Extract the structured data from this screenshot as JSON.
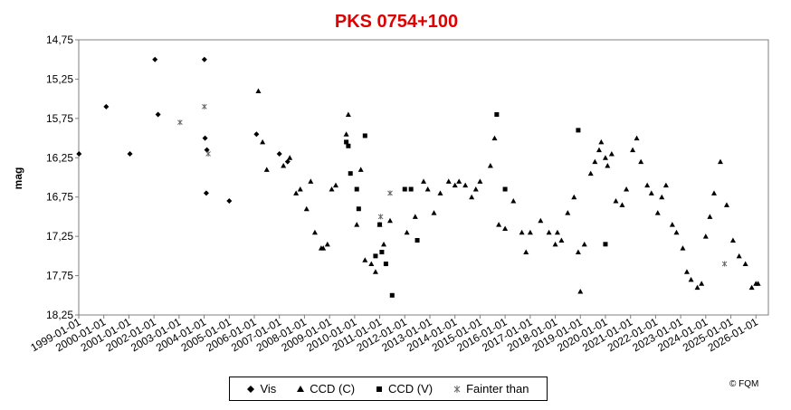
{
  "chart_data": {
    "type": "scatter",
    "title": "PKS 0754+100",
    "title_color": "#e00000",
    "xlabel": "",
    "ylabel": "mag",
    "ylim": [
      14.75,
      18.25
    ],
    "y_inverted": true,
    "yticks": [
      "14,75",
      "15,25",
      "15,75",
      "16,25",
      "16,75",
      "17,25",
      "17,75",
      "18,25"
    ],
    "xlim": [
      "1999-01-01",
      "2026-07-01"
    ],
    "xticks": [
      "1999-01-01",
      "2000-01-01",
      "2001-01-01",
      "2002-01-01",
      "2003-01-01",
      "2004-01-01",
      "2005-01-01",
      "2006-01-01",
      "2007-01-01",
      "2008-01-01",
      "2009-01-01",
      "2010-01-01",
      "2011-01-01",
      "2012-01-01",
      "2013-01-01",
      "2014-01-01",
      "2015-01-01",
      "2016-01-01",
      "2017-01-01",
      "2018-01-01",
      "2019-01-01",
      "2020-01-01",
      "2021-01-01",
      "2022-01-01",
      "2023-01-01",
      "2024-01-01",
      "2025-01-01",
      "2026-01-01"
    ],
    "grid": false,
    "legend_position": "bottom",
    "series": [
      {
        "name": "Vis",
        "marker": "diamond",
        "color": "#000000",
        "points": [
          [
            "1999-01-05",
            16.2
          ],
          [
            "2000-02-05",
            15.6
          ],
          [
            "2001-01-15",
            16.2
          ],
          [
            "2002-01-15",
            15.0
          ],
          [
            "2002-03-01",
            15.7
          ],
          [
            "2004-01-05",
            15.0
          ],
          [
            "2004-01-15",
            16.0
          ],
          [
            "2004-02-10",
            16.15
          ],
          [
            "2004-02-01",
            16.7
          ],
          [
            "2005-01-01",
            16.8
          ],
          [
            "2006-02-01",
            15.95
          ],
          [
            "2007-01-01",
            16.2
          ],
          [
            "2007-05-01",
            16.3
          ]
        ]
      },
      {
        "name": "CCD (C)",
        "marker": "triangle",
        "color": "#000000",
        "points": [
          [
            "2006-03-01",
            15.4
          ],
          [
            "2006-05-01",
            16.05
          ],
          [
            "2006-07-01",
            16.4
          ],
          [
            "2007-03-01",
            16.35
          ],
          [
            "2007-06-01",
            16.25
          ],
          [
            "2007-09-01",
            16.7
          ],
          [
            "2007-11-01",
            16.65
          ],
          [
            "2008-02-01",
            16.9
          ],
          [
            "2008-04-01",
            16.55
          ],
          [
            "2008-06-01",
            17.2
          ],
          [
            "2008-09-01",
            17.4
          ],
          [
            "2008-12-01",
            17.35
          ],
          [
            "2008-10-01",
            17.4
          ],
          [
            "2009-02-01",
            16.65
          ],
          [
            "2009-04-01",
            16.6
          ],
          [
            "2009-09-01",
            15.95
          ],
          [
            "2009-10-01",
            15.7
          ],
          [
            "2010-02-01",
            17.1
          ],
          [
            "2010-04-01",
            16.4
          ],
          [
            "2010-06-01",
            17.55
          ],
          [
            "2010-09-01",
            17.6
          ],
          [
            "2010-11-01",
            17.7
          ],
          [
            "2011-01-01",
            17.1
          ],
          [
            "2011-03-01",
            17.35
          ],
          [
            "2011-06-01",
            17.05
          ],
          [
            "2012-02-01",
            17.2
          ],
          [
            "2012-06-01",
            17.0
          ],
          [
            "2012-10-01",
            16.55
          ],
          [
            "2012-12-01",
            16.65
          ],
          [
            "2013-03-01",
            16.95
          ],
          [
            "2013-06-01",
            16.7
          ],
          [
            "2013-10-01",
            16.55
          ],
          [
            "2014-01-01",
            16.6
          ],
          [
            "2014-03-01",
            16.55
          ],
          [
            "2014-06-01",
            16.6
          ],
          [
            "2014-09-01",
            16.75
          ],
          [
            "2014-11-01",
            16.65
          ],
          [
            "2015-01-01",
            16.55
          ],
          [
            "2015-06-01",
            16.35
          ],
          [
            "2015-08-01",
            16.0
          ],
          [
            "2015-10-01",
            17.1
          ],
          [
            "2016-01-01",
            17.15
          ],
          [
            "2016-05-01",
            16.8
          ],
          [
            "2016-09-01",
            17.2
          ],
          [
            "2016-11-01",
            17.45
          ],
          [
            "2017-01-01",
            17.2
          ],
          [
            "2017-06-01",
            17.05
          ],
          [
            "2017-10-01",
            17.2
          ],
          [
            "2018-01-01",
            17.35
          ],
          [
            "2018-02-01",
            17.2
          ],
          [
            "2018-04-01",
            17.3
          ],
          [
            "2018-07-01",
            16.95
          ],
          [
            "2018-10-01",
            16.75
          ],
          [
            "2018-12-01",
            17.45
          ],
          [
            "2019-01-01",
            17.95
          ],
          [
            "2019-03-01",
            17.35
          ],
          [
            "2019-06-01",
            16.45
          ],
          [
            "2019-08-01",
            16.3
          ],
          [
            "2019-10-01",
            16.15
          ],
          [
            "2019-11-01",
            16.05
          ],
          [
            "2020-01-01",
            16.25
          ],
          [
            "2020-02-01",
            16.35
          ],
          [
            "2020-04-01",
            16.2
          ],
          [
            "2020-06-01",
            16.8
          ],
          [
            "2020-09-01",
            16.85
          ],
          [
            "2020-11-01",
            16.65
          ],
          [
            "2021-02-01",
            16.15
          ],
          [
            "2021-04-01",
            16.0
          ],
          [
            "2021-06-01",
            16.3
          ],
          [
            "2021-09-01",
            16.6
          ],
          [
            "2021-11-01",
            16.7
          ],
          [
            "2022-02-01",
            16.95
          ],
          [
            "2022-04-01",
            16.75
          ],
          [
            "2022-06-01",
            16.6
          ],
          [
            "2022-09-01",
            17.1
          ],
          [
            "2022-11-01",
            17.2
          ],
          [
            "2023-02-01",
            17.4
          ],
          [
            "2023-04-01",
            17.7
          ],
          [
            "2023-06-01",
            17.8
          ],
          [
            "2023-09-01",
            17.9
          ],
          [
            "2023-11-01",
            17.85
          ],
          [
            "2024-01-01",
            17.25
          ],
          [
            "2024-03-01",
            17.0
          ],
          [
            "2024-05-01",
            16.7
          ],
          [
            "2024-08-01",
            16.3
          ],
          [
            "2024-11-01",
            16.85
          ],
          [
            "2025-02-01",
            17.3
          ],
          [
            "2025-05-01",
            17.5
          ],
          [
            "2025-08-01",
            17.6
          ],
          [
            "2025-11-01",
            17.9
          ],
          [
            "2026-01-01",
            17.85
          ],
          [
            "2026-02-01",
            17.85
          ]
        ]
      },
      {
        "name": "CCD (V)",
        "marker": "square",
        "color": "#000000",
        "points": [
          [
            "2009-09-01",
            16.05
          ],
          [
            "2009-10-01",
            16.1
          ],
          [
            "2009-11-01",
            16.45
          ],
          [
            "2010-02-01",
            16.65
          ],
          [
            "2010-03-01",
            16.9
          ],
          [
            "2010-06-01",
            15.97
          ],
          [
            "2010-11-01",
            17.5
          ],
          [
            "2011-01-01",
            17.1
          ],
          [
            "2011-02-01",
            17.45
          ],
          [
            "2011-04-01",
            17.6
          ],
          [
            "2011-07-01",
            18.0
          ],
          [
            "2012-01-01",
            16.65
          ],
          [
            "2012-04-01",
            16.65
          ],
          [
            "2012-07-01",
            17.3
          ],
          [
            "2015-09-01",
            15.7
          ],
          [
            "2016-01-01",
            16.65
          ],
          [
            "2018-12-01",
            15.9
          ],
          [
            "2020-01-01",
            17.35
          ]
        ]
      },
      {
        "name": "Fainter than",
        "marker": "asterisk",
        "color": "#000000",
        "points": [
          [
            "2003-01-15",
            15.8
          ],
          [
            "2004-01-05",
            15.6
          ],
          [
            "2004-03-01",
            16.2
          ],
          [
            "2011-01-15",
            17.0
          ],
          [
            "2011-06-01",
            16.7
          ],
          [
            "2024-10-01",
            17.6
          ]
        ]
      }
    ],
    "copyright": "© FQM"
  }
}
